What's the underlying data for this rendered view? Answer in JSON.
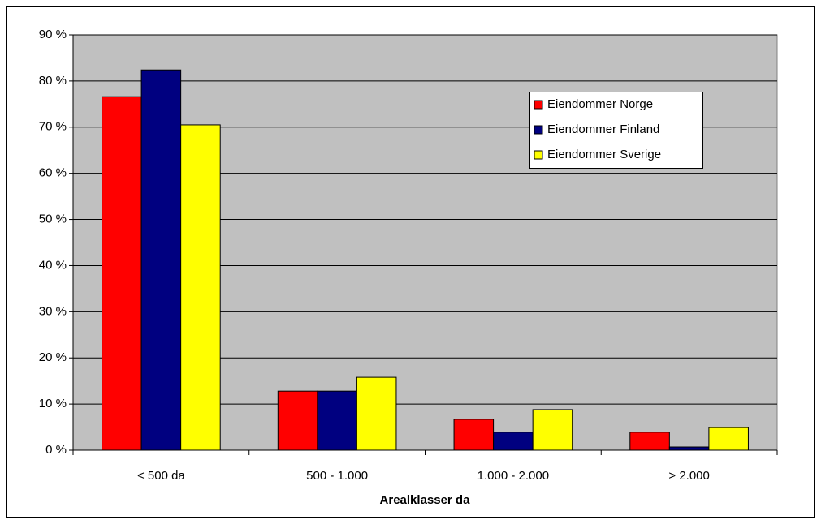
{
  "chart_data": {
    "type": "bar",
    "x_label": "Arealklasser da",
    "categories": [
      "< 500 da",
      "500 - 1.000",
      "1.000 - 2.000",
      "> 2.000"
    ],
    "series": [
      {
        "name": "Eiendommer Norge",
        "color": "#ff0000",
        "values": [
          76.6,
          12.8,
          6.7,
          3.9
        ]
      },
      {
        "name": "Eiendommer Finland",
        "color": "#000080",
        "values": [
          82.4,
          12.8,
          3.9,
          0.7
        ]
      },
      {
        "name": "Eiendommer Sverige",
        "color": "#ffff00",
        "values": [
          70.5,
          15.8,
          8.8,
          4.9
        ]
      }
    ],
    "ylim": [
      0,
      90
    ],
    "yticks": [
      {
        "value": 0,
        "label": "0 %"
      },
      {
        "value": 10,
        "label": "10 %"
      },
      {
        "value": 20,
        "label": "20 %"
      },
      {
        "value": 30,
        "label": "30 %"
      },
      {
        "value": 40,
        "label": "40 %"
      },
      {
        "value": 50,
        "label": "50 %"
      },
      {
        "value": 60,
        "label": "60 %"
      },
      {
        "value": 70,
        "label": "70 %"
      },
      {
        "value": 80,
        "label": "80 %"
      },
      {
        "value": 90,
        "label": "90 %"
      }
    ],
    "grid": true,
    "legend": "upper-right"
  }
}
